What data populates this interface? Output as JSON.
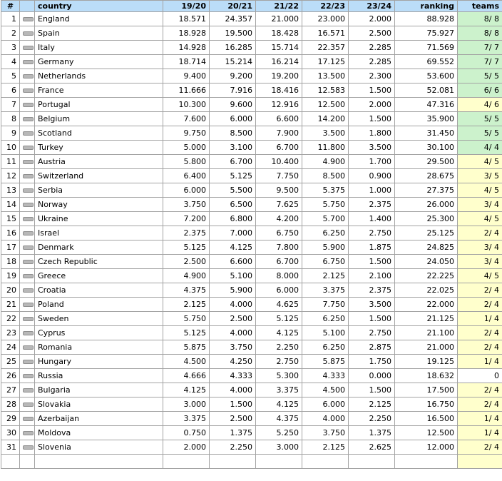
{
  "table": {
    "header": {
      "rank": "#",
      "change": "",
      "country": "country",
      "season1": "19/20",
      "season2": "20/21",
      "season3": "21/22",
      "season4": "22/23",
      "season5": "23/24",
      "ranking": "ranking",
      "teams": "teams"
    },
    "change_icon": "dash-no-change",
    "rows": [
      {
        "rank": "1",
        "change": "same",
        "country": "England",
        "seasons": [
          "18.571",
          "24.357",
          "21.000",
          "23.000",
          "2.000"
        ],
        "ranking": "88.928",
        "teams": "8/ 8",
        "teams_color": "green"
      },
      {
        "rank": "2",
        "change": "same",
        "country": "Spain",
        "seasons": [
          "18.928",
          "19.500",
          "18.428",
          "16.571",
          "2.500"
        ],
        "ranking": "75.927",
        "teams": "8/ 8",
        "teams_color": "green"
      },
      {
        "rank": "3",
        "change": "same",
        "country": "Italy",
        "seasons": [
          "14.928",
          "16.285",
          "15.714",
          "22.357",
          "2.285"
        ],
        "ranking": "71.569",
        "teams": "7/ 7",
        "teams_color": "green"
      },
      {
        "rank": "4",
        "change": "same",
        "country": "Germany",
        "seasons": [
          "18.714",
          "15.214",
          "16.214",
          "17.125",
          "2.285"
        ],
        "ranking": "69.552",
        "teams": "7/ 7",
        "teams_color": "green"
      },
      {
        "rank": "5",
        "change": "same",
        "country": "Netherlands",
        "seasons": [
          "9.400",
          "9.200",
          "19.200",
          "13.500",
          "2.300"
        ],
        "ranking": "53.600",
        "teams": "5/ 5",
        "teams_color": "green"
      },
      {
        "rank": "6",
        "change": "same",
        "country": "France",
        "seasons": [
          "11.666",
          "7.916",
          "18.416",
          "12.583",
          "1.500"
        ],
        "ranking": "52.081",
        "teams": "6/ 6",
        "teams_color": "green"
      },
      {
        "rank": "7",
        "change": "same",
        "country": "Portugal",
        "seasons": [
          "10.300",
          "9.600",
          "12.916",
          "12.500",
          "2.000"
        ],
        "ranking": "47.316",
        "teams": "4/ 6",
        "teams_color": "yellow"
      },
      {
        "rank": "8",
        "change": "same",
        "country": "Belgium",
        "seasons": [
          "7.600",
          "6.000",
          "6.600",
          "14.200",
          "1.500"
        ],
        "ranking": "35.900",
        "teams": "5/ 5",
        "teams_color": "green"
      },
      {
        "rank": "9",
        "change": "same",
        "country": "Scotland",
        "seasons": [
          "9.750",
          "8.500",
          "7.900",
          "3.500",
          "1.800"
        ],
        "ranking": "31.450",
        "teams": "5/ 5",
        "teams_color": "green"
      },
      {
        "rank": "10",
        "change": "same",
        "country": "Turkey",
        "seasons": [
          "5.000",
          "3.100",
          "6.700",
          "11.800",
          "3.500"
        ],
        "ranking": "30.100",
        "teams": "4/ 4",
        "teams_color": "green"
      },
      {
        "rank": "11",
        "change": "same",
        "country": "Austria",
        "seasons": [
          "5.800",
          "6.700",
          "10.400",
          "4.900",
          "1.700"
        ],
        "ranking": "29.500",
        "teams": "4/ 5",
        "teams_color": "yellow"
      },
      {
        "rank": "12",
        "change": "same",
        "country": "Switzerland",
        "seasons": [
          "6.400",
          "5.125",
          "7.750",
          "8.500",
          "0.900"
        ],
        "ranking": "28.675",
        "teams": "3/ 5",
        "teams_color": "yellow"
      },
      {
        "rank": "13",
        "change": "same",
        "country": "Serbia",
        "seasons": [
          "6.000",
          "5.500",
          "9.500",
          "5.375",
          "1.000"
        ],
        "ranking": "27.375",
        "teams": "4/ 5",
        "teams_color": "yellow"
      },
      {
        "rank": "14",
        "change": "same",
        "country": "Norway",
        "seasons": [
          "3.750",
          "6.500",
          "7.625",
          "5.750",
          "2.375"
        ],
        "ranking": "26.000",
        "teams": "3/ 4",
        "teams_color": "yellow"
      },
      {
        "rank": "15",
        "change": "same",
        "country": "Ukraine",
        "seasons": [
          "7.200",
          "6.800",
          "4.200",
          "5.700",
          "1.400"
        ],
        "ranking": "25.300",
        "teams": "4/ 5",
        "teams_color": "yellow"
      },
      {
        "rank": "16",
        "change": "same",
        "country": "Israel",
        "seasons": [
          "2.375",
          "7.000",
          "6.750",
          "6.250",
          "2.750"
        ],
        "ranking": "25.125",
        "teams": "2/ 4",
        "teams_color": "yellow"
      },
      {
        "rank": "17",
        "change": "same",
        "country": "Denmark",
        "seasons": [
          "5.125",
          "4.125",
          "7.800",
          "5.900",
          "1.875"
        ],
        "ranking": "24.825",
        "teams": "3/ 4",
        "teams_color": "yellow"
      },
      {
        "rank": "18",
        "change": "same",
        "country": "Czech Republic",
        "seasons": [
          "2.500",
          "6.600",
          "6.700",
          "6.750",
          "1.500"
        ],
        "ranking": "24.050",
        "teams": "3/ 4",
        "teams_color": "yellow"
      },
      {
        "rank": "19",
        "change": "same",
        "country": "Greece",
        "seasons": [
          "4.900",
          "5.100",
          "8.000",
          "2.125",
          "2.100"
        ],
        "ranking": "22.225",
        "teams": "4/ 5",
        "teams_color": "yellow"
      },
      {
        "rank": "20",
        "change": "same",
        "country": "Croatia",
        "seasons": [
          "4.375",
          "5.900",
          "6.000",
          "3.375",
          "2.375"
        ],
        "ranking": "22.025",
        "teams": "2/ 4",
        "teams_color": "yellow"
      },
      {
        "rank": "21",
        "change": "same",
        "country": "Poland",
        "seasons": [
          "2.125",
          "4.000",
          "4.625",
          "7.750",
          "3.500"
        ],
        "ranking": "22.000",
        "teams": "2/ 4",
        "teams_color": "yellow"
      },
      {
        "rank": "22",
        "change": "same",
        "country": "Sweden",
        "seasons": [
          "5.750",
          "2.500",
          "5.125",
          "6.250",
          "1.500"
        ],
        "ranking": "21.125",
        "teams": "1/ 4",
        "teams_color": "yellow"
      },
      {
        "rank": "23",
        "change": "same",
        "country": "Cyprus",
        "seasons": [
          "5.125",
          "4.000",
          "4.125",
          "5.100",
          "2.750"
        ],
        "ranking": "21.100",
        "teams": "2/ 4",
        "teams_color": "yellow"
      },
      {
        "rank": "24",
        "change": "same",
        "country": "Romania",
        "seasons": [
          "5.875",
          "3.750",
          "2.250",
          "6.250",
          "2.875"
        ],
        "ranking": "21.000",
        "teams": "2/ 4",
        "teams_color": "yellow"
      },
      {
        "rank": "25",
        "change": "same",
        "country": "Hungary",
        "seasons": [
          "4.500",
          "4.250",
          "2.750",
          "5.875",
          "1.750"
        ],
        "ranking": "19.125",
        "teams": "1/ 4",
        "teams_color": "yellow"
      },
      {
        "rank": "26",
        "change": "same",
        "country": "Russia",
        "seasons": [
          "4.666",
          "4.333",
          "5.300",
          "4.333",
          "0.000"
        ],
        "ranking": "18.632",
        "teams": "0",
        "teams_color": "none"
      },
      {
        "rank": "27",
        "change": "same",
        "country": "Bulgaria",
        "seasons": [
          "4.125",
          "4.000",
          "3.375",
          "4.500",
          "1.500"
        ],
        "ranking": "17.500",
        "teams": "2/ 4",
        "teams_color": "yellow"
      },
      {
        "rank": "28",
        "change": "same",
        "country": "Slovakia",
        "seasons": [
          "3.000",
          "1.500",
          "4.125",
          "6.000",
          "2.125"
        ],
        "ranking": "16.750",
        "teams": "2/ 4",
        "teams_color": "yellow"
      },
      {
        "rank": "29",
        "change": "same",
        "country": "Azerbaijan",
        "seasons": [
          "3.375",
          "2.500",
          "4.375",
          "4.000",
          "2.250"
        ],
        "ranking": "16.500",
        "teams": "1/ 4",
        "teams_color": "yellow"
      },
      {
        "rank": "30",
        "change": "same",
        "country": "Moldova",
        "seasons": [
          "0.750",
          "1.375",
          "5.250",
          "3.750",
          "1.375"
        ],
        "ranking": "12.500",
        "teams": "1/ 4",
        "teams_color": "yellow"
      },
      {
        "rank": "31",
        "change": "same",
        "country": "Slovenia",
        "seasons": [
          "2.000",
          "2.250",
          "3.000",
          "2.125",
          "2.625"
        ],
        "ranking": "12.000",
        "teams": "2/ 4",
        "teams_color": "yellow"
      }
    ]
  },
  "colors": {
    "header_bg": "#BBDDF8",
    "cell_border": "#A3A3A3",
    "teams_green": "#CCF2CC",
    "teams_yellow": "#FFFFCC",
    "change_icon_fill": "#B8B8B8"
  }
}
